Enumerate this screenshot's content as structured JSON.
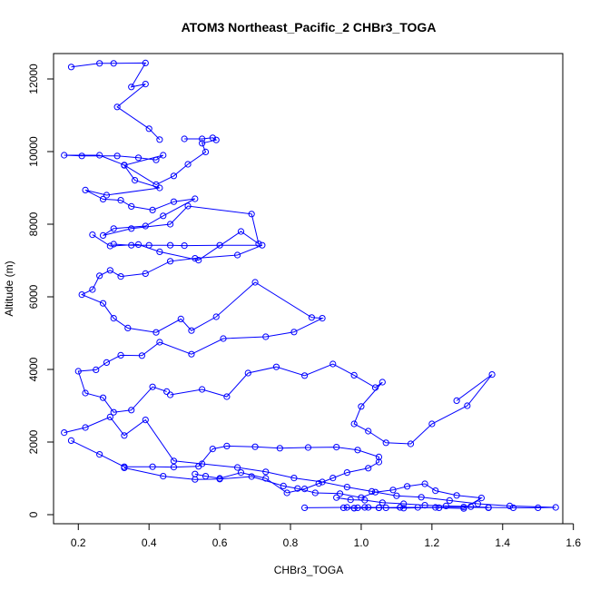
{
  "chart_data": {
    "type": "line",
    "title": "ATOM3 Northeast_Pacific_2 CHBr3_TOGA",
    "xlabel": "CHBr3_TOGA",
    "ylabel": "Altitude (m)",
    "xlim": [
      0.13,
      1.57
    ],
    "ylim": [
      -250,
      12700
    ],
    "xticks": [
      "0.2",
      "0.4",
      "0.6",
      "0.8",
      "1.0",
      "1.2",
      "1.4",
      "1.6"
    ],
    "xtick_values": [
      0.2,
      0.4,
      0.6,
      0.8,
      1.0,
      1.2,
      1.4,
      1.6
    ],
    "yticks": [
      "0",
      "2000",
      "4000",
      "6000",
      "8000",
      "10000",
      "12000"
    ],
    "ytick_values": [
      0,
      2000,
      4000,
      6000,
      8000,
      10000,
      12000
    ],
    "marker": "open-circle",
    "color": "#0000ff",
    "grid": false,
    "legend": "none",
    "series": [
      {
        "x": [
          0.18,
          0.26,
          0.3,
          0.39,
          0.35,
          0.39,
          0.31,
          0.4,
          0.43
        ],
        "y": [
          12330,
          12430,
          12430,
          12440,
          11780,
          11860,
          11230,
          10630,
          10330
        ]
      },
      {
        "x": [
          0.5,
          0.55,
          0.58,
          0.59,
          0.55,
          0.56,
          0.51,
          0.47,
          0.42,
          0.33,
          0.26,
          0.16,
          0.21,
          0.31,
          0.37,
          0.42,
          0.44,
          0.33,
          0.36,
          0.43,
          0.28,
          0.22,
          0.27,
          0.32,
          0.35,
          0.41,
          0.47,
          0.53,
          0.44,
          0.39,
          0.3,
          0.27,
          0.35,
          0.46,
          0.51,
          0.69,
          0.71,
          0.66,
          0.54,
          0.43,
          0.37,
          0.29,
          0.24
        ],
        "y": [
          10350,
          10350,
          10380,
          10320,
          10230,
          9990,
          9650,
          9330,
          9090,
          9630,
          9900,
          9900,
          9880,
          9880,
          9830,
          9770,
          9900,
          9620,
          9210,
          9000,
          8800,
          8940,
          8690,
          8660,
          8490,
          8390,
          8620,
          8700,
          8230,
          7950,
          7880,
          7690,
          7880,
          8000,
          8500,
          8280,
          7460,
          7800,
          7010,
          7240,
          7440,
          7400,
          7710
        ]
      },
      {
        "x": [
          0.3,
          0.35,
          0.4,
          0.46,
          0.5,
          0.6,
          0.72,
          0.65,
          0.53,
          0.46,
          0.39,
          0.32,
          0.29,
          0.26,
          0.24,
          0.21,
          0.27,
          0.3,
          0.34,
          0.42,
          0.49,
          0.52,
          0.59,
          0.7,
          0.86,
          0.89,
          0.81,
          0.73,
          0.61,
          0.52,
          0.43,
          0.38,
          0.32,
          0.28,
          0.25,
          0.2,
          0.22,
          0.27,
          0.3,
          0.35,
          0.41,
          0.45
        ],
        "y": [
          7450,
          7420,
          7420,
          7420,
          7410,
          7420,
          7420,
          7150,
          7060,
          6980,
          6640,
          6560,
          6730,
          6580,
          6200,
          6060,
          5820,
          5410,
          5140,
          5020,
          5390,
          5070,
          5450,
          6400,
          5430,
          5410,
          5030,
          4900,
          4850,
          4420,
          4750,
          4380,
          4390,
          4190,
          3990,
          3950,
          3350,
          3220,
          2820,
          2880,
          3520,
          3390
        ]
      },
      {
        "x": [
          0.46,
          0.55,
          0.62,
          0.68,
          0.76,
          0.84,
          0.92,
          0.98,
          1.04,
          1.06,
          1.0,
          0.98,
          1.02,
          1.07,
          1.14,
          1.2,
          1.3,
          1.37,
          1.27
        ],
        "y": [
          3300,
          3450,
          3250,
          3900,
          4070,
          3830,
          4150,
          3840,
          3500,
          3650,
          2980,
          2500,
          2300,
          1980,
          1950,
          2500,
          3000,
          3860,
          3140
        ]
      },
      {
        "x": [
          0.16,
          0.22,
          0.29,
          0.33,
          0.39,
          0.47,
          0.55,
          0.65,
          0.73,
          0.81,
          0.89,
          0.96,
          1.03,
          1.1,
          1.17,
          1.25,
          1.33,
          1.42,
          1.55,
          1.5,
          1.43,
          1.36,
          1.31,
          1.24,
          1.18,
          1.12,
          1.06,
          1.01,
          0.97,
          0.93
        ],
        "y": [
          2260,
          2400,
          2690,
          2180,
          2610,
          1480,
          1400,
          1300,
          1180,
          1010,
          900,
          760,
          640,
          520,
          480,
          390,
          300,
          240,
          200,
          190,
          190,
          200,
          220,
          240,
          260,
          300,
          330,
          400,
          410,
          470
        ]
      },
      {
        "x": [
          0.18,
          0.26,
          0.33,
          0.41,
          0.47,
          0.54,
          0.58,
          0.62,
          0.7,
          0.77,
          0.85,
          0.93,
          0.99,
          1.05,
          1.05,
          1.02,
          0.96,
          0.92,
          0.88,
          0.84,
          0.79,
          0.73,
          0.66,
          0.6,
          0.56,
          0.53
        ],
        "y": [
          2040,
          1660,
          1320,
          1320,
          1310,
          1330,
          1810,
          1890,
          1870,
          1830,
          1850,
          1860,
          1780,
          1590,
          1450,
          1280,
          1160,
          1010,
          860,
          710,
          600,
          1000,
          1160,
          1000,
          1060,
          1120
        ]
      },
      {
        "x": [
          0.33,
          0.44,
          0.53,
          0.6,
          0.69,
          0.78,
          0.82,
          0.87,
          0.94,
          1.0,
          1.04,
          1.09,
          1.13,
          1.18,
          1.21,
          1.27,
          1.34,
          1.29,
          1.22,
          1.16,
          1.11,
          1.05,
          0.98,
          0.95,
          0.99,
          1.02,
          1.07,
          1.11
        ],
        "y": [
          1290,
          1060,
          970,
          980,
          1050,
          790,
          720,
          600,
          580,
          470,
          620,
          680,
          780,
          850,
          660,
          530,
          460,
          170,
          190,
          200,
          200,
          190,
          180,
          190,
          190,
          200,
          190,
          200
        ]
      },
      {
        "x": [
          0.84,
          0.96,
          0.98,
          1.01,
          1.05,
          1.12,
          1.21,
          1.29,
          1.36
        ],
        "y": [
          190,
          200,
          180,
          200,
          190,
          180,
          200,
          210,
          190
        ]
      }
    ]
  }
}
